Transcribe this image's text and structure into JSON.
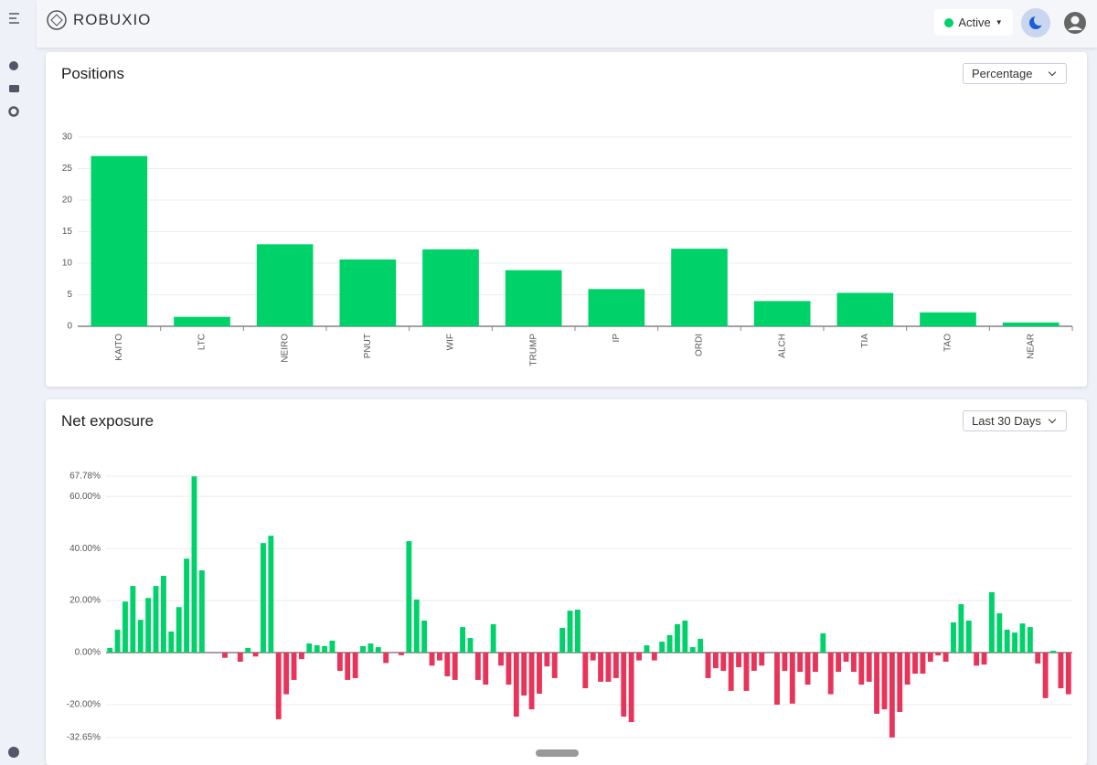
{
  "header": {
    "logo": "ROBUXIO",
    "status": "Active"
  },
  "chart_data": [
    {
      "type": "bar",
      "title": "Positions",
      "selector": "Percentage",
      "categories": [
        "KAITO",
        "LTC",
        "NEIRO",
        "PNUT",
        "WIF",
        "TRUMP",
        "IP",
        "ORDI",
        "ALCH",
        "TIA",
        "TAO",
        "NEAR"
      ],
      "values": [
        27,
        1.5,
        13,
        10.6,
        12.2,
        8.9,
        5.9,
        12.3,
        4,
        5.3,
        2.2,
        0.6
      ],
      "color": "#00d26a",
      "ylim": [
        0,
        30
      ],
      "yticks": [
        0,
        5,
        10,
        15,
        20,
        25,
        30
      ],
      "grid": true
    },
    {
      "type": "bar",
      "title": "Net exposure",
      "selector": "Last 30 Days",
      "values": [
        1.8,
        8.8,
        19.6,
        25.6,
        12.6,
        21,
        25.6,
        29.5,
        8.1,
        17.5,
        36.1,
        67.7,
        31.6,
        0,
        0,
        -2,
        0,
        -3.5,
        1.8,
        -1.5,
        42.1,
        44.9,
        -25.6,
        -16,
        -10.5,
        -2.5,
        3.5,
        2.8,
        2.5,
        4.6,
        -7,
        -10.5,
        -9.8,
        2.5,
        3.5,
        2.1,
        -4,
        0,
        -1,
        42.8,
        20.4,
        12.3,
        -5,
        -3,
        -9.1,
        -10.5,
        9.8,
        5.6,
        -10.5,
        -12.3,
        10.9,
        -5,
        -12.3,
        -24.6,
        -16.5,
        -21.8,
        -15.8,
        -5.3,
        -9.8,
        9.5,
        16.1,
        16.5,
        -13.7,
        -3,
        -11.2,
        -11.2,
        -9.8,
        -24.6,
        -26.7,
        -3,
        2.8,
        -3,
        4.2,
        6.7,
        10.9,
        12.3,
        2.1,
        5.3,
        -9.8,
        -6,
        -7,
        -14.7,
        -5.6,
        -14.7,
        -7,
        -5,
        0,
        -20,
        -7,
        -19.6,
        -7.4,
        -12.3,
        -7.4,
        7.4,
        -16,
        -7.4,
        -3.5,
        -7.4,
        -12.3,
        -11.2,
        -23.5,
        -21.8,
        -32.6,
        -22.8,
        -12.3,
        -8.1,
        -8.1,
        -3.5,
        -1.1,
        -3.5,
        11.6,
        18.6,
        12.3,
        -5,
        -4.6,
        23.2,
        15.1,
        8.8,
        7.7,
        11.2,
        9.8,
        -4.2,
        -17.5,
        0.7,
        -13.7,
        -16
      ],
      "positive_color": "#00d26a",
      "negative_color": "#e8345a",
      "ylim": [
        -32.65,
        67.78
      ],
      "yticks": [
        {
          "value": -32.65,
          "label": "-32.65%"
        },
        {
          "value": -20,
          "label": "-20.00%"
        },
        {
          "value": 0,
          "label": "0.00%"
        },
        {
          "value": 20,
          "label": "20.00%"
        },
        {
          "value": 40,
          "label": "40.00%"
        },
        {
          "value": 60,
          "label": "60.00%"
        },
        {
          "value": 67.78,
          "label": "67.78%"
        }
      ],
      "grid": true
    }
  ]
}
